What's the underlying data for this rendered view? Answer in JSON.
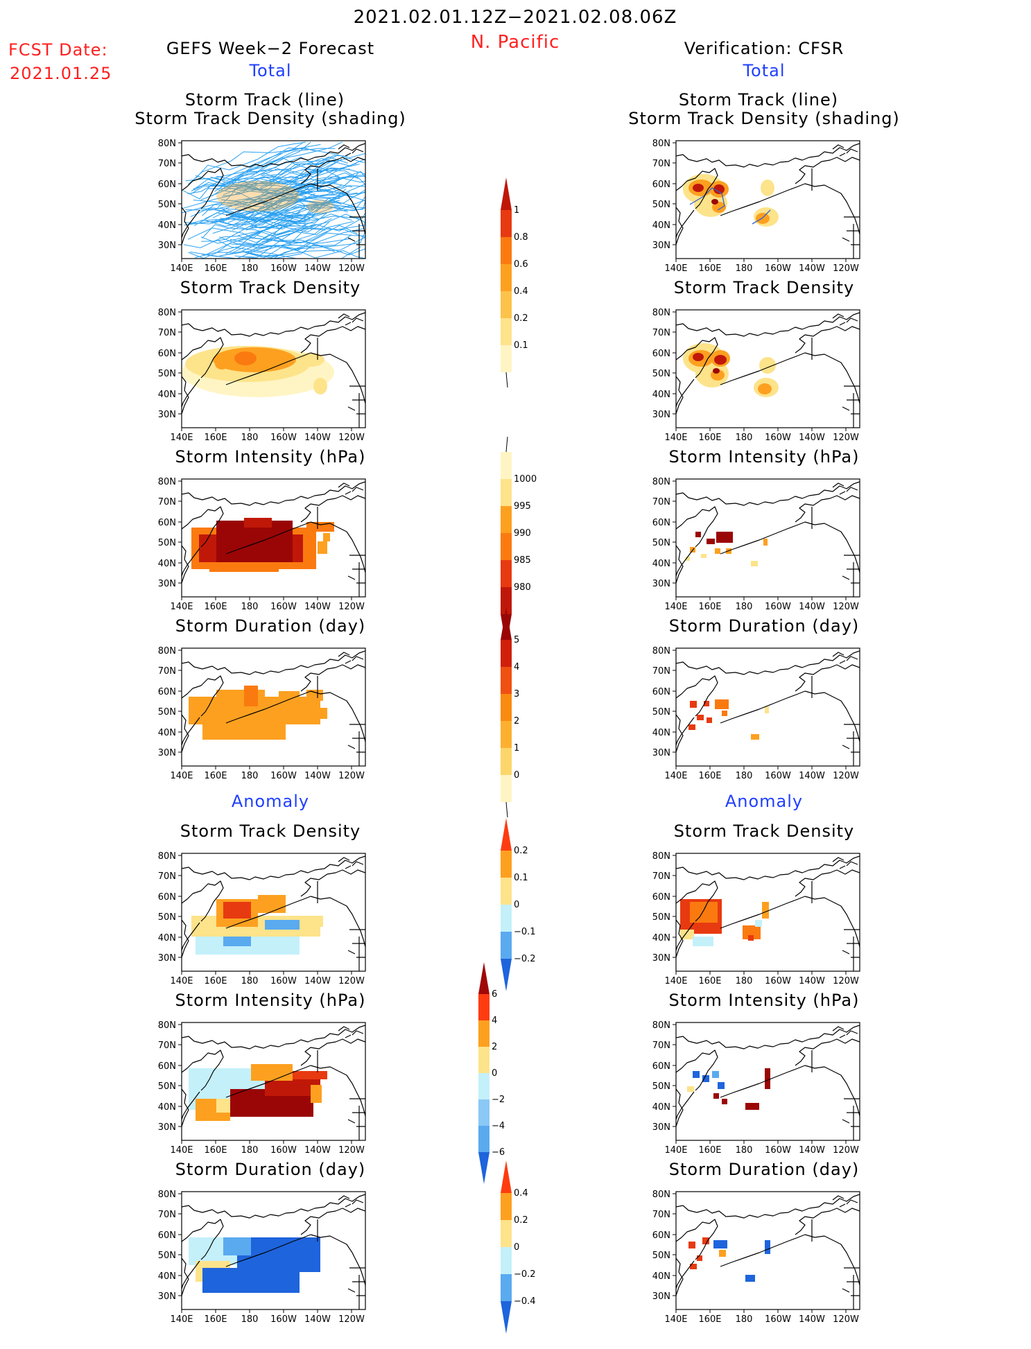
{
  "header": {
    "period": "2021.02.01.12Z−2021.02.08.06Z",
    "region": "N. Pacific",
    "fcst_label": "FCST Date:",
    "fcst_date": "2021.01.25",
    "left_title": "GEFS Week−2 Forecast",
    "right_title": "Verification: CFSR",
    "total_left": "Total",
    "total_right": "Total",
    "anomaly_left": "Anomaly",
    "anomaly_right": "Anomaly"
  },
  "panel_titles": {
    "track_line": "Storm Track (line)",
    "track_shading": "Storm Track Density (shading)",
    "density": "Storm Track Density",
    "intensity": "Storm Intensity (hPa)",
    "duration": "Storm Duration (day)"
  },
  "axes": {
    "lat_labels": [
      "80N",
      "70N",
      "60N",
      "50N",
      "40N",
      "30N"
    ],
    "lon_labels": [
      "140E",
      "160E",
      "180",
      "160W",
      "140W",
      "120W"
    ]
  },
  "colorbars": {
    "density_total": {
      "labels": [
        "1",
        "0.8",
        "0.6",
        "0.4",
        "0.2",
        "0.1"
      ],
      "colors": [
        "#c01808",
        "#e83a10",
        "#fa7a10",
        "#fda020",
        "#fdc24a",
        "#fde38a",
        "#fff5c4"
      ]
    },
    "intensity_total": {
      "labels": [
        "1000",
        "995",
        "990",
        "985",
        "980"
      ],
      "colors": [
        "#fff5c4",
        "#fde38a",
        "#fda020",
        "#fa7a10",
        "#e83a10",
        "#c01808",
        "#9a0606"
      ]
    },
    "duration_total": {
      "labels": [
        "5",
        "4",
        "3",
        "2",
        "1",
        "0"
      ],
      "colors": [
        "#9a0606",
        "#d0200a",
        "#f05010",
        "#fa8a10",
        "#fdb030",
        "#fdd66a",
        "#fff5c4"
      ]
    },
    "density_anom": {
      "labels": [
        "0.2",
        "0.1",
        "0",
        "−0.1",
        "−0.2"
      ],
      "colors": [
        "#ff3c10",
        "#fda020",
        "#fde38a",
        "#c4f0fa",
        "#5aaaf0",
        "#1e64dc"
      ]
    },
    "intensity_anom": {
      "labels": [
        "6",
        "4",
        "2",
        "0",
        "−2",
        "−4",
        "−6"
      ],
      "colors": [
        "#a00808",
        "#ff3c10",
        "#fda020",
        "#fde38a",
        "#c4f0fa",
        "#8ac8f5",
        "#5aaaf0",
        "#1e64dc"
      ]
    },
    "duration_anom": {
      "labels": [
        "0.4",
        "0.2",
        "0",
        "−0.2",
        "−0.4"
      ],
      "colors": [
        "#ff3c10",
        "#fda020",
        "#fde38a",
        "#c4f0fa",
        "#5aaaf0",
        "#1e64dc"
      ]
    }
  }
}
